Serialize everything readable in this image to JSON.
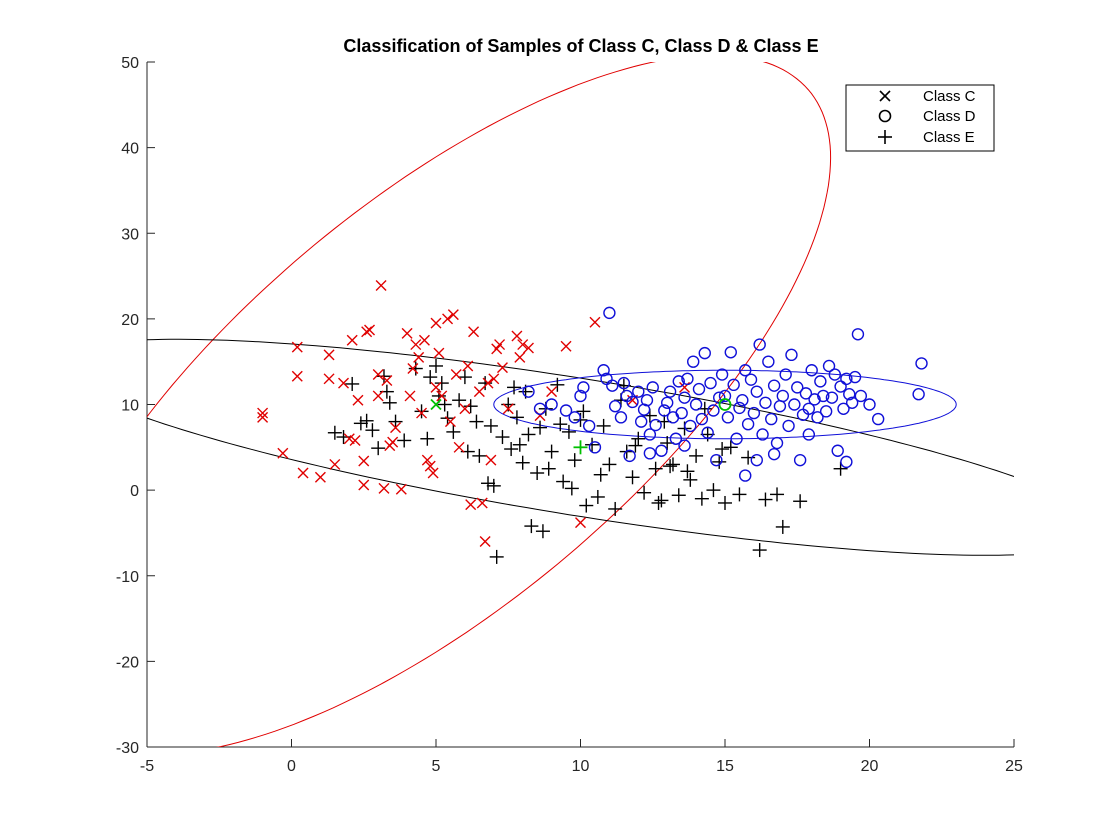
{
  "chart_data": {
    "type": "scatter",
    "title": "Classification of Samples of Class C, Class D & Class E",
    "xlabel": "",
    "ylabel": "",
    "xlim": [
      -5,
      25
    ],
    "ylim": [
      -30,
      50
    ],
    "xticks": [
      -5,
      0,
      5,
      10,
      15,
      20,
      25
    ],
    "yticks": [
      -30,
      -20,
      -10,
      0,
      10,
      20,
      30,
      40,
      50
    ],
    "grid": false,
    "legend_position": "top-right",
    "legend": [
      {
        "label": "Class C",
        "marker": "x"
      },
      {
        "label": "Class D",
        "marker": "o"
      },
      {
        "label": "Class E",
        "marker": "+"
      }
    ],
    "series": [
      {
        "name": "Class C",
        "marker": "x",
        "color": "#e00000",
        "points": [
          [
            -1,
            9
          ],
          [
            -1,
            8.5
          ],
          [
            -0.3,
            4.3
          ],
          [
            0.2,
            16.7
          ],
          [
            0.2,
            13.3
          ],
          [
            0.4,
            2
          ],
          [
            1,
            1.5
          ],
          [
            1.3,
            15.8
          ],
          [
            1.3,
            13
          ],
          [
            1.5,
            3
          ],
          [
            1.8,
            12.5
          ],
          [
            2,
            6
          ],
          [
            2.1,
            17.5
          ],
          [
            2.2,
            5.8
          ],
          [
            2.3,
            10.5
          ],
          [
            2.5,
            3.4
          ],
          [
            2.5,
            0.6
          ],
          [
            2.6,
            18.5
          ],
          [
            2.7,
            18.7
          ],
          [
            3,
            11
          ],
          [
            3,
            13.5
          ],
          [
            3.1,
            23.9
          ],
          [
            3.2,
            0.2
          ],
          [
            3.3,
            12.8
          ],
          [
            3.4,
            5.2
          ],
          [
            3.5,
            5.6
          ],
          [
            3.6,
            7.3
          ],
          [
            3.8,
            0.1
          ],
          [
            4,
            18.3
          ],
          [
            4.1,
            11
          ],
          [
            4.2,
            14.2
          ],
          [
            4.3,
            17
          ],
          [
            4.4,
            15.5
          ],
          [
            4.5,
            9
          ],
          [
            4.6,
            17.5
          ],
          [
            4.7,
            3.5
          ],
          [
            4.8,
            2.8
          ],
          [
            4.9,
            2
          ],
          [
            5,
            19.5
          ],
          [
            5,
            12
          ],
          [
            5.1,
            16
          ],
          [
            5.2,
            11
          ],
          [
            5.4,
            20
          ],
          [
            5.5,
            8
          ],
          [
            5.6,
            20.5
          ],
          [
            5.7,
            13.5
          ],
          [
            5.8,
            5
          ],
          [
            6,
            9.5
          ],
          [
            6.1,
            14.5
          ],
          [
            6.2,
            -1.7
          ],
          [
            6.3,
            18.5
          ],
          [
            6.5,
            11.5
          ],
          [
            6.6,
            -1.5
          ],
          [
            6.7,
            -6
          ],
          [
            6.8,
            12.5
          ],
          [
            6.9,
            3.5
          ],
          [
            7,
            13
          ],
          [
            7.1,
            16.5
          ],
          [
            7.2,
            17
          ],
          [
            7.3,
            14.3
          ],
          [
            7.5,
            9.5
          ],
          [
            7.8,
            18
          ],
          [
            7.9,
            15.5
          ],
          [
            8,
            17
          ],
          [
            8.2,
            16.6
          ],
          [
            8.6,
            8.7
          ],
          [
            9,
            11.5
          ],
          [
            9.5,
            16.8
          ],
          [
            10,
            -3.8
          ],
          [
            10.5,
            19.6
          ],
          [
            11.8,
            10.5
          ],
          [
            13.6,
            12
          ]
        ]
      },
      {
        "name": "Class D",
        "marker": "o",
        "color": "#1010d8",
        "points": [
          [
            8.2,
            11.5
          ],
          [
            8.6,
            9.5
          ],
          [
            9,
            10
          ],
          [
            9.5,
            9.3
          ],
          [
            9.8,
            8.5
          ],
          [
            10,
            11
          ],
          [
            10.1,
            12
          ],
          [
            10.3,
            7.5
          ],
          [
            10.5,
            5
          ],
          [
            10.8,
            14
          ],
          [
            10.9,
            13
          ],
          [
            11,
            20.7
          ],
          [
            11.1,
            12.2
          ],
          [
            11.2,
            9.8
          ],
          [
            11.4,
            8.5
          ],
          [
            11.5,
            12.5
          ],
          [
            11.6,
            11
          ],
          [
            11.7,
            4
          ],
          [
            11.8,
            10.3
          ],
          [
            12,
            11.5
          ],
          [
            12.1,
            8
          ],
          [
            12.2,
            9.4
          ],
          [
            12.3,
            10.5
          ],
          [
            12.4,
            6.5
          ],
          [
            12.5,
            12
          ],
          [
            12.6,
            7.6
          ],
          [
            12.8,
            4.6
          ],
          [
            12.9,
            9.3
          ],
          [
            13,
            10.2
          ],
          [
            13.1,
            11.5
          ],
          [
            13.2,
            8.5
          ],
          [
            13.3,
            6
          ],
          [
            13.4,
            12.7
          ],
          [
            13.5,
            9
          ],
          [
            13.6,
            10.8
          ],
          [
            13.7,
            13
          ],
          [
            13.8,
            7.5
          ],
          [
            13.9,
            15
          ],
          [
            14,
            10
          ],
          [
            14.1,
            11.8
          ],
          [
            14.2,
            8.3
          ],
          [
            14.3,
            16
          ],
          [
            14.4,
            6.7
          ],
          [
            14.5,
            12.5
          ],
          [
            14.6,
            9.3
          ],
          [
            14.7,
            3.5
          ],
          [
            14.8,
            10.8
          ],
          [
            14.9,
            13.5
          ],
          [
            15,
            11
          ],
          [
            15.1,
            8.5
          ],
          [
            15.2,
            16.1
          ],
          [
            15.3,
            12.3
          ],
          [
            15.4,
            6
          ],
          [
            15.5,
            9.6
          ],
          [
            15.6,
            10.5
          ],
          [
            15.7,
            14
          ],
          [
            15.8,
            7.7
          ],
          [
            15.9,
            12.9
          ],
          [
            16,
            9
          ],
          [
            16.1,
            11.5
          ],
          [
            16.2,
            17
          ],
          [
            16.3,
            6.5
          ],
          [
            16.4,
            10.2
          ],
          [
            16.5,
            15
          ],
          [
            16.6,
            8.3
          ],
          [
            16.7,
            12.2
          ],
          [
            16.8,
            5.5
          ],
          [
            16.9,
            9.8
          ],
          [
            17,
            11
          ],
          [
            17.1,
            13.5
          ],
          [
            17.2,
            7.5
          ],
          [
            17.3,
            15.8
          ],
          [
            17.4,
            10
          ],
          [
            17.5,
            12
          ],
          [
            17.6,
            3.5
          ],
          [
            17.7,
            8.8
          ],
          [
            17.8,
            11.3
          ],
          [
            17.9,
            9.5
          ],
          [
            18,
            14
          ],
          [
            18.1,
            10.6
          ],
          [
            18.2,
            8.5
          ],
          [
            18.3,
            12.7
          ],
          [
            18.4,
            11
          ],
          [
            18.5,
            9.2
          ],
          [
            18.6,
            14.5
          ],
          [
            18.7,
            10.8
          ],
          [
            18.8,
            13.5
          ],
          [
            19,
            12.1
          ],
          [
            19.1,
            9.5
          ],
          [
            19.2,
            13
          ],
          [
            19.3,
            11.2
          ],
          [
            19.4,
            10.2
          ],
          [
            19.5,
            13.2
          ],
          [
            19.6,
            18.2
          ],
          [
            19.7,
            11
          ],
          [
            20,
            10
          ],
          [
            20.3,
            8.3
          ],
          [
            21.7,
            11.2
          ],
          [
            21.8,
            14.8
          ],
          [
            16.1,
            3.5
          ],
          [
            17.9,
            6.5
          ],
          [
            18.9,
            4.6
          ],
          [
            19.2,
            3.3
          ],
          [
            15.7,
            1.7
          ],
          [
            12.4,
            4.3
          ],
          [
            13.6,
            5.2
          ],
          [
            16.7,
            4.2
          ]
        ]
      },
      {
        "name": "Class E",
        "marker": "+",
        "color": "#000000",
        "points": [
          [
            1.5,
            6.7
          ],
          [
            1.8,
            6.2
          ],
          [
            2.1,
            12.4
          ],
          [
            2.4,
            7.8
          ],
          [
            2.6,
            8.1
          ],
          [
            3,
            4.9
          ],
          [
            3.2,
            13.3
          ],
          [
            3.4,
            10.2
          ],
          [
            3.6,
            8
          ],
          [
            3.9,
            5.8
          ],
          [
            4.3,
            14.2
          ],
          [
            4.5,
            9.2
          ],
          [
            4.7,
            6
          ],
          [
            5,
            14.5
          ],
          [
            5.1,
            11
          ],
          [
            5.2,
            12.5
          ],
          [
            5.4,
            8.4
          ],
          [
            5.6,
            6.8
          ],
          [
            5.8,
            10.5
          ],
          [
            6,
            13.2
          ],
          [
            6.2,
            9.8
          ],
          [
            6.4,
            8
          ],
          [
            6.5,
            4
          ],
          [
            6.7,
            12.5
          ],
          [
            6.9,
            7.5
          ],
          [
            7,
            0.5
          ],
          [
            7.1,
            -7.8
          ],
          [
            7.3,
            6.2
          ],
          [
            7.5,
            10
          ],
          [
            7.6,
            4.8
          ],
          [
            7.8,
            8.5
          ],
          [
            8,
            3.2
          ],
          [
            8.1,
            11.5
          ],
          [
            8.2,
            6.5
          ],
          [
            8.3,
            -4.2
          ],
          [
            8.5,
            2
          ],
          [
            8.6,
            7.3
          ],
          [
            8.7,
            -4.8
          ],
          [
            8.8,
            9.5
          ],
          [
            9,
            4.5
          ],
          [
            9.2,
            12.3
          ],
          [
            9.4,
            1
          ],
          [
            9.6,
            6.8
          ],
          [
            9.8,
            3.5
          ],
          [
            10,
            8.2
          ],
          [
            10.2,
            -1.8
          ],
          [
            10.4,
            5.3
          ],
          [
            10.6,
            -0.8
          ],
          [
            10.8,
            7.5
          ],
          [
            11,
            3
          ],
          [
            11.2,
            -2.2
          ],
          [
            11.4,
            10.5
          ],
          [
            11.6,
            4.5
          ],
          [
            11.8,
            1.5
          ],
          [
            12,
            6
          ],
          [
            12.2,
            -0.3
          ],
          [
            12.4,
            8.7
          ],
          [
            12.6,
            2.5
          ],
          [
            12.8,
            -1.2
          ],
          [
            13,
            5.5
          ],
          [
            13.2,
            3
          ],
          [
            13.4,
            -0.6
          ],
          [
            13.6,
            7.2
          ],
          [
            13.8,
            1.2
          ],
          [
            14,
            4
          ],
          [
            14.2,
            -1
          ],
          [
            14.4,
            6.5
          ],
          [
            14.6,
            0
          ],
          [
            14.8,
            3.3
          ],
          [
            15,
            -1.5
          ],
          [
            15.2,
            5
          ],
          [
            15.5,
            -0.5
          ],
          [
            15.8,
            3.8
          ],
          [
            16.2,
            -7
          ],
          [
            16.8,
            -0.5
          ],
          [
            17,
            -4.3
          ],
          [
            17.6,
            -1.3
          ],
          [
            19,
            2.5
          ],
          [
            6.8,
            0.8
          ],
          [
            7.9,
            5.3
          ],
          [
            9.3,
            7.7
          ],
          [
            10.1,
            9.2
          ],
          [
            11.5,
            12.2
          ],
          [
            12.9,
            8
          ],
          [
            14.3,
            9.5
          ],
          [
            8.9,
            2.5
          ],
          [
            10.7,
            1.8
          ],
          [
            11.9,
            5.2
          ],
          [
            13.7,
            2.2
          ],
          [
            6.1,
            4.5
          ],
          [
            5.3,
            10
          ],
          [
            4.8,
            13.2
          ],
          [
            3.3,
            11.5
          ],
          [
            2.8,
            7
          ],
          [
            7.7,
            12
          ],
          [
            9.7,
            0.2
          ],
          [
            12.7,
            -1.5
          ],
          [
            13.1,
            2.8
          ],
          [
            14.9,
            4.8
          ],
          [
            16.4,
            -1.1
          ]
        ]
      }
    ],
    "centroids": [
      {
        "series": "Class C",
        "marker": "x",
        "color": "#00c000",
        "x": 5,
        "y": 10
      },
      {
        "series": "Class D",
        "marker": "o",
        "color": "#00c000",
        "x": 15,
        "y": 10
      },
      {
        "series": "Class E",
        "marker": "+",
        "color": "#00c000",
        "x": 10,
        "y": 5
      }
    ],
    "ellipses": [
      {
        "series": "Class C",
        "color": "#e00000",
        "cx": 5,
        "cy": 10,
        "a": 42,
        "b": 9.4,
        "angle_deg": 76
      },
      {
        "series": "Class E",
        "color": "#000000",
        "cx": 10,
        "cy": 5,
        "a": 21,
        "b": 7,
        "angle_deg": -32
      },
      {
        "series": "Class D",
        "color": "#1010d8",
        "cx": 15,
        "cy": 10,
        "a": 8,
        "b": 4,
        "angle_deg": 0
      }
    ]
  }
}
